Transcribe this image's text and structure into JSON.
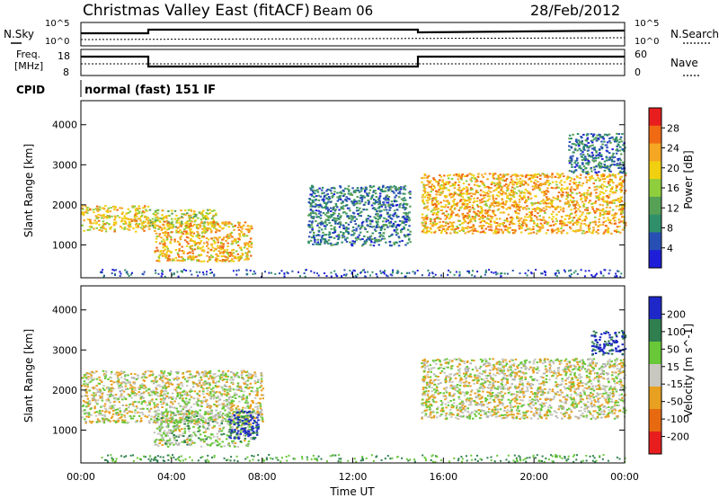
{
  "header": {
    "station": "Christmas Valley East (fitACF)",
    "beam": "Beam 06",
    "date": "28/Feb/2012"
  },
  "noise_panel": {
    "left_label": "N.Sky",
    "right_label": "N.Search",
    "left_ticks": [
      "10^5",
      "10^0"
    ],
    "right_ticks": [
      "10^5",
      "10^0"
    ]
  },
  "freq_panel": {
    "left_label_line1": "Freq.",
    "left_label_line2": "[MHz]",
    "right_label": "Nave",
    "left_ticks": [
      "18",
      "8"
    ],
    "right_ticks": [
      "60",
      "0"
    ]
  },
  "cpid": {
    "label": "CPID",
    "mode": "normal (fast) 151 IF"
  },
  "colors": {
    "power_scale": [
      "#1e1ed8",
      "#2850b4",
      "#2f8f6a",
      "#57a157",
      "#8fce3c",
      "#f0d010",
      "#f5a623",
      "#f06a14",
      "#e81e1e"
    ],
    "velocity_scale": [
      "#1e28c8",
      "#2f7f4f",
      "#68c838",
      "#c8c8c0",
      "#e8a020",
      "#e86a10",
      "#e81e1e"
    ],
    "ground_scatter": "#b4b4b0"
  },
  "chart_data": [
    {
      "type": "heatmap",
      "name": "power",
      "xlabel": "",
      "ylabel": "Slant Range [km]",
      "x_ticks": [
        "00:00",
        "04:00",
        "08:00",
        "12:00",
        "16:00",
        "20:00",
        "00:00"
      ],
      "y_ticks": [
        "1000",
        "2000",
        "3000",
        "4000"
      ],
      "xlim_hours": [
        0,
        24
      ],
      "ylim": [
        180,
        4600
      ],
      "colorbar": {
        "label": "Power [dB]",
        "ticks": [
          "4",
          "8",
          "12",
          "16",
          "20",
          "24",
          "28"
        ]
      },
      "features": [
        {
          "hours": [
            0,
            3
          ],
          "range_km": [
            1350,
            2000
          ],
          "value_db": 20
        },
        {
          "hours": [
            3,
            6
          ],
          "range_km": [
            1400,
            1900
          ],
          "value_db": 18
        },
        {
          "hours": [
            3.2,
            7.5
          ],
          "range_km": [
            600,
            1600
          ],
          "value_db": 22
        },
        {
          "hours": [
            10,
            14.5
          ],
          "range_km": [
            1000,
            2500
          ],
          "value_db": 8
        },
        {
          "hours": [
            15,
            24
          ],
          "range_km": [
            1300,
            2800
          ],
          "value_db": 22
        },
        {
          "hours": [
            21.5,
            24
          ],
          "range_km": [
            2800,
            3800
          ],
          "value_db": 8
        }
      ]
    },
    {
      "type": "heatmap",
      "name": "velocity",
      "xlabel": "Time UT",
      "ylabel": "Slant Range [km]",
      "x_ticks": [
        "00:00",
        "04:00",
        "08:00",
        "12:00",
        "16:00",
        "20:00",
        "00:00"
      ],
      "y_ticks": [
        "1000",
        "2000",
        "3000",
        "4000"
      ],
      "xlim_hours": [
        0,
        24
      ],
      "ylim": [
        180,
        4600
      ],
      "colorbar": {
        "label": "Velocity [m s^-1]",
        "ticks": [
          "200",
          "100",
          "50",
          "15",
          "-15",
          "-50",
          "-100",
          "-200"
        ]
      },
      "features": [
        {
          "hours": [
            0,
            8
          ],
          "range_km": [
            1200,
            2500
          ],
          "value_ms": 0
        },
        {
          "hours": [
            3.2,
            7.5
          ],
          "range_km": [
            600,
            1500
          ],
          "value_ms": 40
        },
        {
          "hours": [
            6.5,
            7.8
          ],
          "range_km": [
            800,
            1500
          ],
          "value_ms": 200
        },
        {
          "hours": [
            15,
            24
          ],
          "range_km": [
            1300,
            2800
          ],
          "value_ms": 0
        },
        {
          "hours": [
            22.5,
            24
          ],
          "range_km": [
            2900,
            3500
          ],
          "value_ms": 200
        }
      ]
    }
  ]
}
